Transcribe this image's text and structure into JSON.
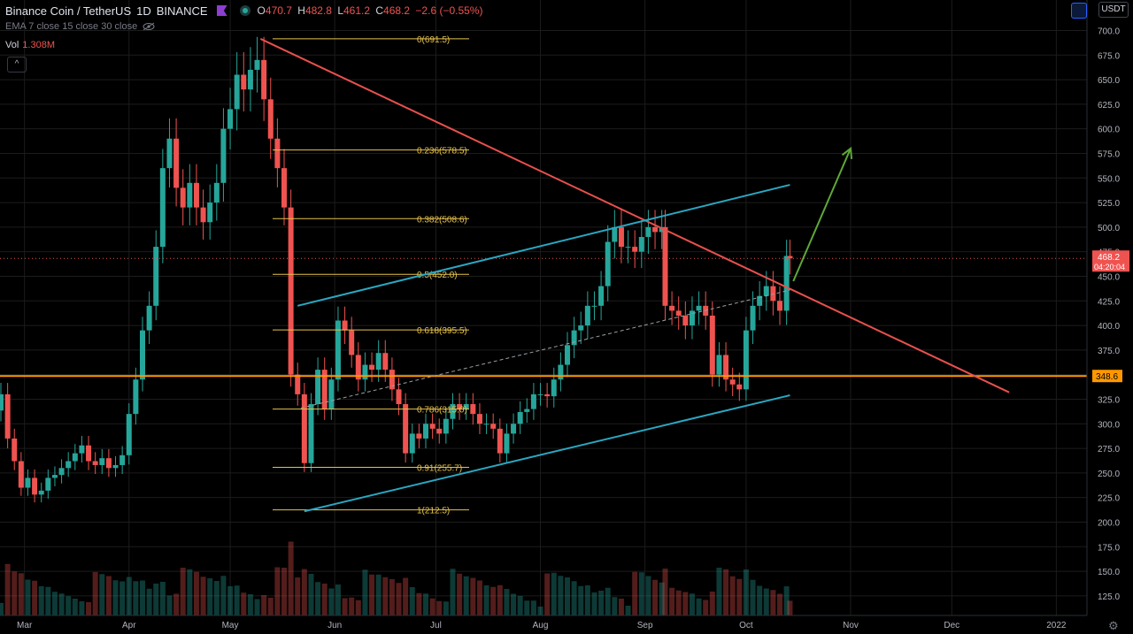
{
  "header": {
    "symbol": "Binance Coin / TetherUS",
    "interval": "1D",
    "exchange": "BINANCE",
    "ohlc": [
      {
        "key": "O",
        "value": "470.7"
      },
      {
        "key": "H",
        "value": "482.8"
      },
      {
        "key": "L",
        "value": "461.2"
      },
      {
        "key": "C",
        "value": "468.2"
      }
    ],
    "change": "−2.6 (−0.55%)",
    "flag_icon": "flag-icon",
    "live_icon": "live-dot-icon"
  },
  "indicators": {
    "ema_label": "EMA 7 close 15 close 30 close",
    "hidden_icon": "eye-off-icon",
    "vol_label": "Vol",
    "vol_value": "1.308M",
    "collapse_glyph": "^"
  },
  "currency_button": "USDT",
  "colors": {
    "up": "#26a69a",
    "down": "#ef5350",
    "fib": "#e6c24c",
    "trend": "#e8504d",
    "channel": "#2aa7c2",
    "arrow": "#5fa836",
    "support": "#ff9800",
    "grid": "#1c1c1c"
  },
  "chart_data": {
    "type": "candlestick",
    "x_labels": [
      "Mar",
      "Apr",
      "May",
      "Jun",
      "Jul",
      "Aug",
      "Sep",
      "Oct",
      "Nov",
      "Dec",
      "2022"
    ],
    "y_ticks": [
      100,
      125,
      150,
      175,
      200,
      225,
      250,
      275,
      300,
      325,
      350,
      375,
      400,
      425,
      450,
      475,
      500,
      525,
      550,
      575,
      600,
      625,
      650,
      675,
      700
    ],
    "ylim": [
      97,
      722
    ],
    "price_label": {
      "value": "468.2",
      "countdown": "04:20:04"
    },
    "support_label": "348.6",
    "fibonacci": [
      {
        "label": "0(691.5)",
        "price": 691.5
      },
      {
        "label": "0.236(578.5)",
        "price": 578.5
      },
      {
        "label": "0.382(508.6)",
        "price": 508.6
      },
      {
        "label": "0.5(452.0)",
        "price": 452.0
      },
      {
        "label": "0.618(395.5)",
        "price": 395.5
      },
      {
        "label": "0.786(315.0)",
        "price": 315.0
      },
      {
        "label": "0.91(255.7)",
        "price": 255.7
      },
      {
        "label": "1(212.5)",
        "price": 212.5
      }
    ],
    "support_level": 348.6,
    "trendline": {
      "from": [
        "2021-05-10",
        691.5
      ],
      "to": [
        "2021-12-18",
        332
      ]
    },
    "channel_upper": {
      "from": [
        "2021-05-21",
        420
      ],
      "to": [
        "2021-10-14",
        543
      ]
    },
    "channel_lower": {
      "from": [
        "2021-05-23",
        211
      ],
      "to": [
        "2021-10-14",
        329
      ]
    },
    "channel_mid": {
      "from": [
        "2021-05-22",
        316
      ],
      "to": [
        "2021-10-14",
        436
      ]
    },
    "arrow": {
      "from": [
        "2021-10-15",
        445
      ],
      "to": [
        "2021-11-01",
        580
      ]
    },
    "candles_close": [
      {
        "d": "2021-02-22",
        "c": 330
      },
      {
        "d": "2021-02-24",
        "c": 285
      },
      {
        "d": "2021-02-26",
        "c": 262
      },
      {
        "d": "2021-02-28",
        "c": 235
      },
      {
        "d": "2021-03-02",
        "c": 245
      },
      {
        "d": "2021-03-04",
        "c": 228
      },
      {
        "d": "2021-03-06",
        "c": 232
      },
      {
        "d": "2021-03-08",
        "c": 245
      },
      {
        "d": "2021-03-10",
        "c": 248
      },
      {
        "d": "2021-03-12",
        "c": 255
      },
      {
        "d": "2021-03-14",
        "c": 262
      },
      {
        "d": "2021-03-16",
        "c": 270
      },
      {
        "d": "2021-03-18",
        "c": 278
      },
      {
        "d": "2021-03-20",
        "c": 262
      },
      {
        "d": "2021-03-22",
        "c": 258
      },
      {
        "d": "2021-03-24",
        "c": 265
      },
      {
        "d": "2021-03-26",
        "c": 255
      },
      {
        "d": "2021-03-28",
        "c": 258
      },
      {
        "d": "2021-03-30",
        "c": 268
      },
      {
        "d": "2021-04-01",
        "c": 310
      },
      {
        "d": "2021-04-03",
        "c": 345
      },
      {
        "d": "2021-04-05",
        "c": 395
      },
      {
        "d": "2021-04-07",
        "c": 420
      },
      {
        "d": "2021-04-09",
        "c": 480
      },
      {
        "d": "2021-04-11",
        "c": 560
      },
      {
        "d": "2021-04-13",
        "c": 590
      },
      {
        "d": "2021-04-15",
        "c": 540
      },
      {
        "d": "2021-04-17",
        "c": 520
      },
      {
        "d": "2021-04-19",
        "c": 545
      },
      {
        "d": "2021-04-21",
        "c": 520
      },
      {
        "d": "2021-04-23",
        "c": 505
      },
      {
        "d": "2021-04-25",
        "c": 525
      },
      {
        "d": "2021-04-27",
        "c": 545
      },
      {
        "d": "2021-04-29",
        "c": 600
      },
      {
        "d": "2021-05-01",
        "c": 620
      },
      {
        "d": "2021-05-03",
        "c": 655
      },
      {
        "d": "2021-05-05",
        "c": 640
      },
      {
        "d": "2021-05-07",
        "c": 660
      },
      {
        "d": "2021-05-09",
        "c": 670
      },
      {
        "d": "2021-05-11",
        "c": 630
      },
      {
        "d": "2021-05-13",
        "c": 590
      },
      {
        "d": "2021-05-15",
        "c": 560
      },
      {
        "d": "2021-05-17",
        "c": 520
      },
      {
        "d": "2021-05-19",
        "c": 350
      },
      {
        "d": "2021-05-21",
        "c": 330
      },
      {
        "d": "2021-05-23",
        "c": 260
      },
      {
        "d": "2021-05-25",
        "c": 320
      },
      {
        "d": "2021-05-27",
        "c": 355
      },
      {
        "d": "2021-05-29",
        "c": 315
      },
      {
        "d": "2021-05-31",
        "c": 345
      },
      {
        "d": "2021-06-02",
        "c": 405
      },
      {
        "d": "2021-06-04",
        "c": 395
      },
      {
        "d": "2021-06-06",
        "c": 370
      },
      {
        "d": "2021-06-08",
        "c": 345
      },
      {
        "d": "2021-06-10",
        "c": 360
      },
      {
        "d": "2021-06-12",
        "c": 355
      },
      {
        "d": "2021-06-14",
        "c": 372
      },
      {
        "d": "2021-06-16",
        "c": 355
      },
      {
        "d": "2021-06-18",
        "c": 335
      },
      {
        "d": "2021-06-20",
        "c": 320
      },
      {
        "d": "2021-06-22",
        "c": 270
      },
      {
        "d": "2021-06-24",
        "c": 290
      },
      {
        "d": "2021-06-26",
        "c": 285
      },
      {
        "d": "2021-06-28",
        "c": 300
      },
      {
        "d": "2021-06-30",
        "c": 295
      },
      {
        "d": "2021-07-02",
        "c": 290
      },
      {
        "d": "2021-07-04",
        "c": 305
      },
      {
        "d": "2021-07-06",
        "c": 320
      },
      {
        "d": "2021-07-08",
        "c": 315
      },
      {
        "d": "2021-07-10",
        "c": 320
      },
      {
        "d": "2021-07-12",
        "c": 310
      },
      {
        "d": "2021-07-14",
        "c": 300
      },
      {
        "d": "2021-07-16",
        "c": 300
      },
      {
        "d": "2021-07-18",
        "c": 295
      },
      {
        "d": "2021-07-20",
        "c": 270
      },
      {
        "d": "2021-07-22",
        "c": 290
      },
      {
        "d": "2021-07-24",
        "c": 300
      },
      {
        "d": "2021-07-26",
        "c": 312
      },
      {
        "d": "2021-07-28",
        "c": 315
      },
      {
        "d": "2021-07-30",
        "c": 330
      },
      {
        "d": "2021-08-01",
        "c": 330
      },
      {
        "d": "2021-08-03",
        "c": 328
      },
      {
        "d": "2021-08-05",
        "c": 345
      },
      {
        "d": "2021-08-07",
        "c": 360
      },
      {
        "d": "2021-08-09",
        "c": 380
      },
      {
        "d": "2021-08-11",
        "c": 395
      },
      {
        "d": "2021-08-13",
        "c": 400
      },
      {
        "d": "2021-08-15",
        "c": 420
      },
      {
        "d": "2021-08-17",
        "c": 420
      },
      {
        "d": "2021-08-19",
        "c": 440
      },
      {
        "d": "2021-08-21",
        "c": 485
      },
      {
        "d": "2021-08-23",
        "c": 500
      },
      {
        "d": "2021-08-25",
        "c": 480
      },
      {
        "d": "2021-08-27",
        "c": 480
      },
      {
        "d": "2021-08-29",
        "c": 475
      },
      {
        "d": "2021-08-31",
        "c": 490
      },
      {
        "d": "2021-09-02",
        "c": 500
      },
      {
        "d": "2021-09-04",
        "c": 495
      },
      {
        "d": "2021-09-06",
        "c": 500
      },
      {
        "d": "2021-09-07",
        "c": 420
      },
      {
        "d": "2021-09-09",
        "c": 415
      },
      {
        "d": "2021-09-11",
        "c": 410
      },
      {
        "d": "2021-09-13",
        "c": 400
      },
      {
        "d": "2021-09-15",
        "c": 415
      },
      {
        "d": "2021-09-17",
        "c": 420
      },
      {
        "d": "2021-09-19",
        "c": 410
      },
      {
        "d": "2021-09-21",
        "c": 350
      },
      {
        "d": "2021-09-23",
        "c": 370
      },
      {
        "d": "2021-09-25",
        "c": 345
      },
      {
        "d": "2021-09-27",
        "c": 340
      },
      {
        "d": "2021-09-29",
        "c": 335
      },
      {
        "d": "2021-10-01",
        "c": 395
      },
      {
        "d": "2021-10-03",
        "c": 420
      },
      {
        "d": "2021-10-05",
        "c": 430
      },
      {
        "d": "2021-10-07",
        "c": 440
      },
      {
        "d": "2021-10-09",
        "c": 425
      },
      {
        "d": "2021-10-11",
        "c": 415
      },
      {
        "d": "2021-10-13",
        "c": 470.7
      },
      {
        "d": "2021-10-14",
        "c": 468.2
      }
    ]
  }
}
